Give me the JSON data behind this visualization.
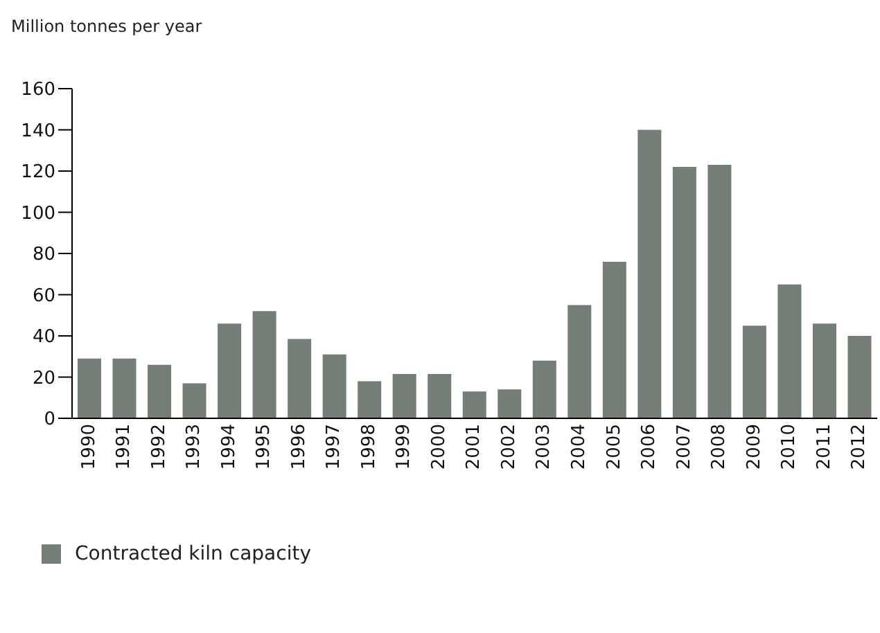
{
  "chart_data": {
    "type": "bar",
    "ylabel": "Million tonnes per year",
    "categories": [
      "1990",
      "1991",
      "1992",
      "1993",
      "1994",
      "1995",
      "1996",
      "1997",
      "1998",
      "1999",
      "2000",
      "2001",
      "2002",
      "2003",
      "2004",
      "2005",
      "2006",
      "2007",
      "2008",
      "2009",
      "2010",
      "2011",
      "2012"
    ],
    "series": [
      {
        "name": "Contracted kiln capacity",
        "color": "#747d76",
        "values": [
          29,
          29,
          26,
          17,
          46,
          52,
          38.5,
          31,
          18,
          21.5,
          21.5,
          13,
          14,
          28,
          55,
          76,
          140,
          122,
          123,
          45,
          65,
          46,
          40
        ]
      }
    ],
    "ylim": [
      0,
      160
    ],
    "yticks": [
      0,
      20,
      40,
      60,
      80,
      100,
      120,
      140,
      160
    ],
    "grid": false,
    "legend": "bottom left"
  }
}
